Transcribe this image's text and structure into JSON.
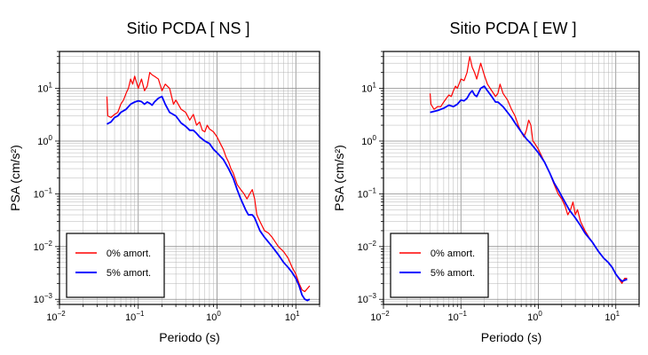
{
  "chart_data": [
    {
      "type": "line",
      "title": "Sitio PCDA [ NS ]",
      "xlabel": "Periodo (s)",
      "ylabel": "PSA (cm/s²)",
      "xscale": "log",
      "yscale": "log",
      "xlim": [
        0.01,
        20
      ],
      "ylim": [
        0.0008,
        50
      ],
      "grid": true,
      "legend_position": "bottom-left",
      "x_ticks": [
        {
          "base": "10",
          "exp": "−2",
          "value": 0.01
        },
        {
          "base": "10",
          "exp": "−1",
          "value": 0.1
        },
        {
          "base": "10",
          "exp": "0",
          "value": 1
        },
        {
          "base": "10",
          "exp": "1",
          "value": 10
        }
      ],
      "y_ticks": [
        {
          "base": "10",
          "exp": "−3",
          "value": 0.001
        },
        {
          "base": "10",
          "exp": "−2",
          "value": 0.01
        },
        {
          "base": "10",
          "exp": "−1",
          "value": 0.1
        },
        {
          "base": "10",
          "exp": "0",
          "value": 1
        },
        {
          "base": "10",
          "exp": "1",
          "value": 10
        }
      ],
      "series": [
        {
          "name": "0% amort.",
          "color": "#ff0000",
          "points": [
            [
              0.04,
              7
            ],
            [
              0.041,
              3
            ],
            [
              0.045,
              2.8
            ],
            [
              0.05,
              3.2
            ],
            [
              0.055,
              3.5
            ],
            [
              0.06,
              5
            ],
            [
              0.065,
              6
            ],
            [
              0.07,
              8
            ],
            [
              0.075,
              10
            ],
            [
              0.08,
              15
            ],
            [
              0.085,
              12
            ],
            [
              0.09,
              17
            ],
            [
              0.1,
              10
            ],
            [
              0.11,
              15
            ],
            [
              0.12,
              9
            ],
            [
              0.13,
              11
            ],
            [
              0.14,
              20
            ],
            [
              0.15,
              18
            ],
            [
              0.16,
              17
            ],
            [
              0.18,
              15
            ],
            [
              0.2,
              9
            ],
            [
              0.22,
              12
            ],
            [
              0.25,
              10
            ],
            [
              0.28,
              5
            ],
            [
              0.3,
              6
            ],
            [
              0.35,
              4
            ],
            [
              0.4,
              3.5
            ],
            [
              0.45,
              2.5
            ],
            [
              0.5,
              3.2
            ],
            [
              0.55,
              2
            ],
            [
              0.6,
              2.3
            ],
            [
              0.65,
              1.6
            ],
            [
              0.7,
              1.5
            ],
            [
              0.75,
              2
            ],
            [
              0.8,
              1.7
            ],
            [
              0.9,
              1.5
            ],
            [
              1,
              1.2
            ],
            [
              1.1,
              0.9
            ],
            [
              1.2,
              0.7
            ],
            [
              1.3,
              0.5
            ],
            [
              1.4,
              0.4
            ],
            [
              1.5,
              0.3
            ],
            [
              1.6,
              0.25
            ],
            [
              1.8,
              0.15
            ],
            [
              2,
              0.12
            ],
            [
              2.2,
              0.1
            ],
            [
              2.4,
              0.08
            ],
            [
              2.6,
              0.1
            ],
            [
              2.8,
              0.12
            ],
            [
              3,
              0.08
            ],
            [
              3.2,
              0.04
            ],
            [
              3.5,
              0.03
            ],
            [
              4,
              0.02
            ],
            [
              4.5,
              0.018
            ],
            [
              5,
              0.015
            ],
            [
              6,
              0.01
            ],
            [
              7,
              0.008
            ],
            [
              8,
              0.006
            ],
            [
              9,
              0.004
            ],
            [
              10,
              0.003
            ],
            [
              11,
              0.002
            ],
            [
              12,
              0.0015
            ],
            [
              13,
              0.0014
            ],
            [
              14,
              0.0016
            ],
            [
              15,
              0.0018
            ]
          ]
        },
        {
          "name": "5% amort.",
          "color": "#0000ff",
          "points": [
            [
              0.04,
              2.1
            ],
            [
              0.045,
              2.3
            ],
            [
              0.05,
              2.8
            ],
            [
              0.055,
              3
            ],
            [
              0.06,
              3.5
            ],
            [
              0.07,
              4
            ],
            [
              0.08,
              5
            ],
            [
              0.09,
              5.5
            ],
            [
              0.1,
              5.8
            ],
            [
              0.11,
              5.6
            ],
            [
              0.12,
              5
            ],
            [
              0.13,
              5.5
            ],
            [
              0.14,
              5.2
            ],
            [
              0.15,
              4.8
            ],
            [
              0.16,
              5.5
            ],
            [
              0.18,
              6.5
            ],
            [
              0.2,
              7
            ],
            [
              0.22,
              5
            ],
            [
              0.25,
              3.5
            ],
            [
              0.3,
              3
            ],
            [
              0.35,
              2.2
            ],
            [
              0.4,
              1.9
            ],
            [
              0.45,
              1.6
            ],
            [
              0.5,
              1.6
            ],
            [
              0.55,
              1.4
            ],
            [
              0.6,
              1.2
            ],
            [
              0.7,
              1
            ],
            [
              0.8,
              0.9
            ],
            [
              0.9,
              0.7
            ],
            [
              1,
              0.6
            ],
            [
              1.2,
              0.45
            ],
            [
              1.4,
              0.3
            ],
            [
              1.6,
              0.2
            ],
            [
              1.8,
              0.12
            ],
            [
              2,
              0.08
            ],
            [
              2.3,
              0.05
            ],
            [
              2.5,
              0.04
            ],
            [
              2.8,
              0.04
            ],
            [
              3,
              0.035
            ],
            [
              3.5,
              0.02
            ],
            [
              4,
              0.015
            ],
            [
              5,
              0.01
            ],
            [
              6,
              0.007
            ],
            [
              7,
              0.005
            ],
            [
              8,
              0.004
            ],
            [
              9,
              0.0032
            ],
            [
              10,
              0.0025
            ],
            [
              11,
              0.0018
            ],
            [
              12,
              0.0012
            ],
            [
              13,
              0.001
            ],
            [
              14,
              0.00095
            ],
            [
              15,
              0.001
            ]
          ]
        }
      ]
    },
    {
      "type": "line",
      "title": "Sitio PCDA [ EW ]",
      "xlabel": "Periodo (s)",
      "ylabel": "PSA (cm/s²)",
      "xscale": "log",
      "yscale": "log",
      "xlim": [
        0.01,
        20
      ],
      "ylim": [
        0.0008,
        50
      ],
      "grid": true,
      "legend_position": "bottom-left",
      "x_ticks": [
        {
          "base": "10",
          "exp": "−2",
          "value": 0.01
        },
        {
          "base": "10",
          "exp": "−1",
          "value": 0.1
        },
        {
          "base": "10",
          "exp": "0",
          "value": 1
        },
        {
          "base": "10",
          "exp": "1",
          "value": 10
        }
      ],
      "y_ticks": [
        {
          "base": "10",
          "exp": "−3",
          "value": 0.001
        },
        {
          "base": "10",
          "exp": "−2",
          "value": 0.01
        },
        {
          "base": "10",
          "exp": "−1",
          "value": 0.1
        },
        {
          "base": "10",
          "exp": "0",
          "value": 1
        },
        {
          "base": "10",
          "exp": "1",
          "value": 10
        }
      ],
      "series": [
        {
          "name": "0% amort.",
          "color": "#ff0000",
          "points": [
            [
              0.04,
              8
            ],
            [
              0.041,
              5
            ],
            [
              0.045,
              4
            ],
            [
              0.05,
              4.5
            ],
            [
              0.055,
              4.5
            ],
            [
              0.06,
              5.5
            ],
            [
              0.065,
              6.5
            ],
            [
              0.07,
              7.5
            ],
            [
              0.075,
              7
            ],
            [
              0.08,
              9
            ],
            [
              0.085,
              11
            ],
            [
              0.09,
              10
            ],
            [
              0.1,
              15
            ],
            [
              0.11,
              14
            ],
            [
              0.12,
              20
            ],
            [
              0.13,
              40
            ],
            [
              0.14,
              25
            ],
            [
              0.15,
              20
            ],
            [
              0.16,
              15
            ],
            [
              0.18,
              30
            ],
            [
              0.2,
              18
            ],
            [
              0.22,
              12
            ],
            [
              0.25,
              9
            ],
            [
              0.28,
              7
            ],
            [
              0.3,
              8
            ],
            [
              0.32,
              12
            ],
            [
              0.35,
              8
            ],
            [
              0.4,
              6
            ],
            [
              0.45,
              4
            ],
            [
              0.5,
              3
            ],
            [
              0.55,
              2
            ],
            [
              0.6,
              1.5
            ],
            [
              0.65,
              1.2
            ],
            [
              0.7,
              1.6
            ],
            [
              0.75,
              2.5
            ],
            [
              0.8,
              2
            ],
            [
              0.85,
              1
            ],
            [
              0.9,
              0.9
            ],
            [
              1,
              0.7
            ],
            [
              1.2,
              0.4
            ],
            [
              1.4,
              0.25
            ],
            [
              1.6,
              0.15
            ],
            [
              1.8,
              0.1
            ],
            [
              2,
              0.08
            ],
            [
              2.2,
              0.06
            ],
            [
              2.4,
              0.04
            ],
            [
              2.6,
              0.05
            ],
            [
              2.8,
              0.07
            ],
            [
              3,
              0.04
            ],
            [
              3.2,
              0.05
            ],
            [
              3.5,
              0.03
            ],
            [
              4,
              0.02
            ],
            [
              4.5,
              0.015
            ],
            [
              5,
              0.012
            ],
            [
              6,
              0.008
            ],
            [
              7,
              0.006
            ],
            [
              8,
              0.005
            ],
            [
              9,
              0.004
            ],
            [
              10,
              0.003
            ],
            [
              12,
              0.002
            ],
            [
              13,
              0.0025
            ],
            [
              14,
              0.0025
            ]
          ]
        },
        {
          "name": "5% amort.",
          "color": "#0000ff",
          "points": [
            [
              0.04,
              3.5
            ],
            [
              0.05,
              3.8
            ],
            [
              0.06,
              4.2
            ],
            [
              0.07,
              4.8
            ],
            [
              0.08,
              4.5
            ],
            [
              0.09,
              5
            ],
            [
              0.1,
              6
            ],
            [
              0.11,
              5.8
            ],
            [
              0.12,
              6.5
            ],
            [
              0.13,
              8
            ],
            [
              0.14,
              9
            ],
            [
              0.15,
              7.5
            ],
            [
              0.16,
              7
            ],
            [
              0.18,
              10
            ],
            [
              0.2,
              11
            ],
            [
              0.22,
              9
            ],
            [
              0.25,
              7
            ],
            [
              0.28,
              5.5
            ],
            [
              0.3,
              5.5
            ],
            [
              0.35,
              4.5
            ],
            [
              0.4,
              3.5
            ],
            [
              0.45,
              2.8
            ],
            [
              0.5,
              2.2
            ],
            [
              0.6,
              1.5
            ],
            [
              0.7,
              1.1
            ],
            [
              0.8,
              0.9
            ],
            [
              1,
              0.6
            ],
            [
              1.2,
              0.4
            ],
            [
              1.4,
              0.25
            ],
            [
              1.6,
              0.16
            ],
            [
              1.8,
              0.12
            ],
            [
              2,
              0.09
            ],
            [
              2.5,
              0.05
            ],
            [
              3,
              0.035
            ],
            [
              3.5,
              0.025
            ],
            [
              4,
              0.018
            ],
            [
              5,
              0.012
            ],
            [
              6,
              0.008
            ],
            [
              7,
              0.006
            ],
            [
              8,
              0.005
            ],
            [
              9,
              0.004
            ],
            [
              10,
              0.003
            ],
            [
              11,
              0.0025
            ],
            [
              12,
              0.0022
            ],
            [
              13,
              0.0023
            ],
            [
              14,
              0.0024
            ]
          ]
        }
      ]
    }
  ]
}
